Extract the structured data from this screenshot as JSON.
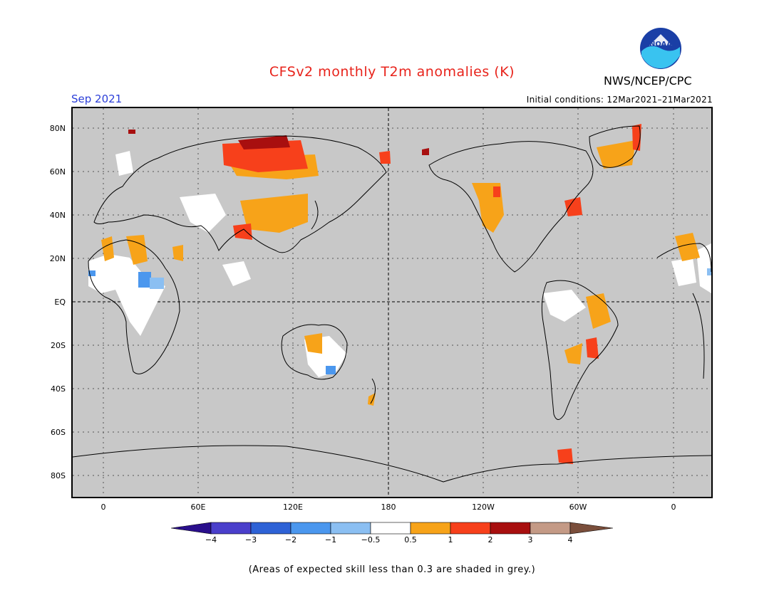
{
  "title": "CFSv2 monthly T2m anomalies (K)",
  "month": "Sep 2021",
  "initial_conditions": "Initial conditions: 12Mar2021–21Mar2021",
  "agency": "NWS/NCEP/CPC",
  "logo_text": "NOAA",
  "lat_labels": [
    "80N",
    "60N",
    "40N",
    "20N",
    "EQ",
    "20S",
    "40S",
    "60S",
    "80S"
  ],
  "lon_labels": [
    "0",
    "60E",
    "120E",
    "180",
    "120W",
    "60W",
    "0"
  ],
  "colorbar": {
    "ticks": [
      "−4",
      "−3",
      "−2",
      "−1",
      "−0.5",
      "0.5",
      "1",
      "2",
      "3",
      "4"
    ],
    "colors": [
      "#2a0f8c",
      "#4a3fcb",
      "#2e62d6",
      "#4b97ee",
      "#8bbff2",
      "#ffffff",
      "#f7a319",
      "#f7401b",
      "#a80f0f",
      "#c49a86",
      "#7a4e3b"
    ]
  },
  "skill_note": "(Areas of expected skill less than 0.3 are shaded in grey.)",
  "colors": {
    "background_grey": "#c8c8c8",
    "title_red": "#e8231b",
    "month_blue": "#2b3ed8"
  }
}
